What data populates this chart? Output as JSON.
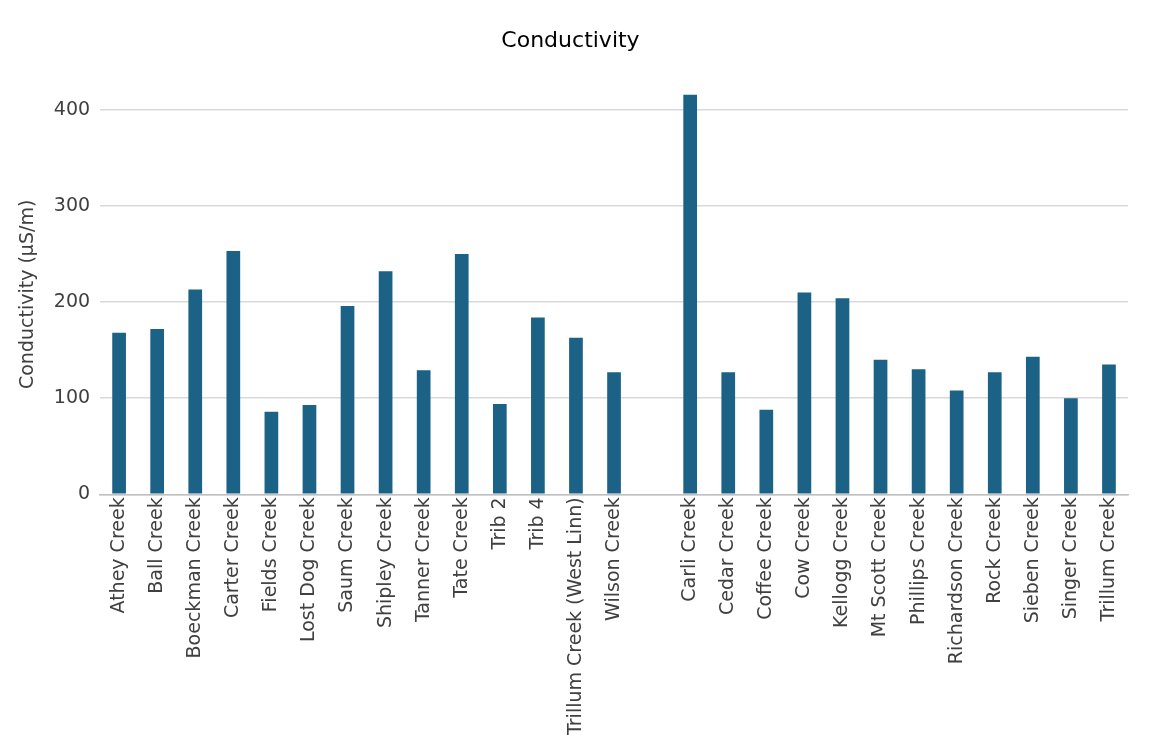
{
  "chart_data": {
    "type": "bar",
    "title": "Conductivity",
    "ylabel": "Conductivity (µS/m)",
    "categories": [
      "Athey Creek",
      "Ball Creek",
      "Boeckman Creek",
      "Carter Creek",
      "Fields Creek",
      "Lost Dog Creek",
      "Saum Creek",
      "Shipley Creek",
      "Tanner Creek",
      "Tate Creek",
      "Trib 2",
      "Trib 4",
      "Trillum Creek (West Linn)",
      "Wilson Creek",
      null,
      "Carli Creek",
      "Cedar Creek",
      "Coffee Creek",
      "Cow Creek",
      "Kellogg Creek",
      "Mt Scott Creek",
      "Phillips Creek",
      "Richardson Creek",
      "Rock Creek",
      "Sieben Creek",
      "Singer Creek",
      "Trillum Creek"
    ],
    "values": [
      168,
      172,
      213,
      253,
      86,
      93,
      196,
      232,
      129,
      250,
      94,
      184,
      163,
      127,
      null,
      416,
      127,
      88,
      210,
      204,
      140,
      130,
      108,
      127,
      143,
      100,
      135
    ],
    "color": "#1b6286",
    "ylim": [
      0,
      416
    ],
    "yticks": [
      0,
      100,
      200,
      300,
      400
    ],
    "grid": "y",
    "legend": false
  }
}
